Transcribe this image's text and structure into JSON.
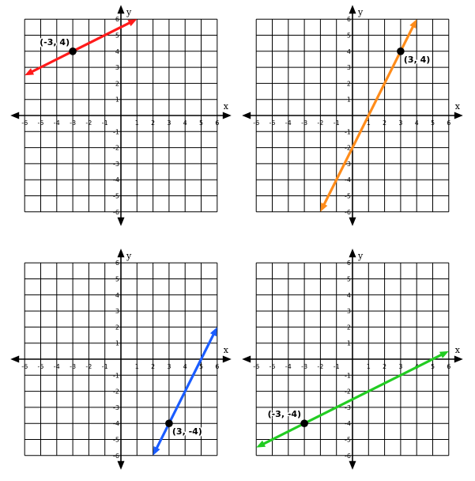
{
  "chart_data": [
    {
      "type": "line",
      "xlabel": "x",
      "ylabel": "y",
      "xlim": [
        -6,
        6
      ],
      "ylim": [
        -6,
        6
      ],
      "grid": true,
      "x_ticks": [
        -6,
        -5,
        -4,
        -3,
        -2,
        -1,
        1,
        2,
        3,
        4,
        5,
        6
      ],
      "y_ticks": [
        6,
        5,
        4,
        3,
        2,
        1,
        -1,
        -2,
        -3,
        -4,
        -5,
        -6
      ],
      "line": {
        "color": "#ff1a1a",
        "x": [
          -6,
          1
        ],
        "y": [
          2.5,
          6
        ],
        "arrows": "both"
      },
      "point": {
        "x": -3,
        "y": 4,
        "label": "(-3, 4)",
        "label_position": "above-left"
      }
    },
    {
      "type": "line",
      "xlabel": "x",
      "ylabel": "y",
      "xlim": [
        -6,
        6
      ],
      "ylim": [
        -6,
        6
      ],
      "grid": true,
      "x_ticks": [
        -6,
        -5,
        -4,
        -3,
        -2,
        -1,
        1,
        2,
        3,
        4,
        5,
        6
      ],
      "y_ticks": [
        6,
        5,
        4,
        3,
        2,
        1,
        -1,
        -2,
        -3,
        -4,
        -5,
        -6
      ],
      "line": {
        "color": "#ff8c1a",
        "x": [
          -2,
          4
        ],
        "y": [
          -6,
          6
        ],
        "arrows": "both"
      },
      "point": {
        "x": 3,
        "y": 4,
        "label": "(3, 4)",
        "label_position": "below-right"
      }
    },
    {
      "type": "line",
      "xlabel": "x",
      "ylabel": "y",
      "xlim": [
        -6,
        6
      ],
      "ylim": [
        -6,
        6
      ],
      "grid": true,
      "x_ticks": [
        -6,
        -5,
        -4,
        -3,
        -2,
        -1,
        1,
        2,
        3,
        4,
        5,
        6
      ],
      "y_ticks": [
        6,
        5,
        4,
        3,
        2,
        1,
        -1,
        -2,
        -3,
        -4,
        -5,
        -6
      ],
      "line": {
        "color": "#1a5cff",
        "x": [
          2,
          6
        ],
        "y": [
          -6,
          2
        ],
        "arrows": "both"
      },
      "point": {
        "x": 3,
        "y": -4,
        "label": "(3, -4)",
        "label_position": "below-right"
      }
    },
    {
      "type": "line",
      "xlabel": "x",
      "ylabel": "y",
      "xlim": [
        -6,
        6
      ],
      "ylim": [
        -6,
        6
      ],
      "grid": true,
      "x_ticks": [
        -6,
        -5,
        -4,
        -3,
        -2,
        -1,
        1,
        2,
        3,
        4,
        5,
        6
      ],
      "y_ticks": [
        6,
        5,
        4,
        3,
        2,
        1,
        -1,
        -2,
        -3,
        -4,
        -5,
        -6
      ],
      "line": {
        "color": "#22cc22",
        "x": [
          -6,
          6
        ],
        "y": [
          -5.5,
          0.5
        ],
        "arrows": "both"
      },
      "point": {
        "x": -3,
        "y": -4,
        "label": "(-3, -4)",
        "label_position": "above-left"
      }
    }
  ]
}
